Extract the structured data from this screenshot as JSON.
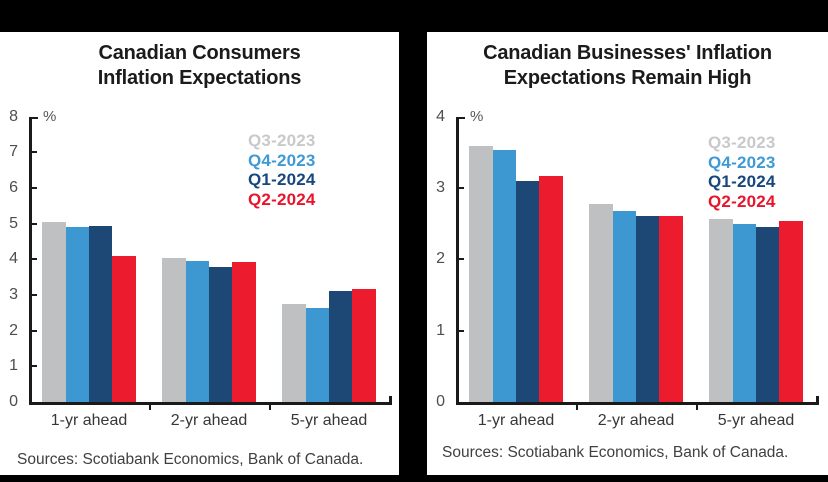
{
  "page": {
    "background_color": "#000000",
    "panel_background_color": "#ffffff"
  },
  "chart_data": [
    {
      "type": "bar",
      "title": "Canadian Consumers Inflation Expectations",
      "title_lines": [
        "Canadian Consumers",
        "Inflation Expectations"
      ],
      "unit_label": "%",
      "ylim": [
        0,
        8
      ],
      "ytick_step": 1,
      "grid": false,
      "legend_position": "upper right",
      "categories": [
        "1-yr ahead",
        "2-yr ahead",
        "5-yr ahead"
      ],
      "series": [
        {
          "name": "Q3-2023",
          "color": "#bfc0c2",
          "legend_color": "#c8c9cb",
          "values": [
            5.05,
            4.04,
            2.74
          ]
        },
        {
          "name": "Q4-2023",
          "color": "#3d97d1",
          "legend_color": "#3d9ad6",
          "values": [
            4.9,
            3.94,
            2.62
          ]
        },
        {
          "name": "Q1-2024",
          "color": "#1d4876",
          "legend_color": "#17477d",
          "values": [
            4.93,
            3.78,
            3.11
          ]
        },
        {
          "name": "Q2-2024",
          "color": "#ec1b2d",
          "legend_color": "#e8142b",
          "values": [
            4.1,
            3.92,
            3.18
          ]
        }
      ],
      "source_note": "Sources: Scotiabank Economics, Bank of Canada."
    },
    {
      "type": "bar",
      "title": "Canadian Businesses' Inflation Expectations Remain High",
      "title_lines": [
        "Canadian Businesses' Inflation",
        "Expectations Remain High"
      ],
      "unit_label": "%",
      "ylim": [
        0,
        4
      ],
      "ytick_step": 1,
      "grid": false,
      "legend_position": "upper right",
      "categories": [
        "1-yr ahead",
        "2-yr ahead",
        "5-yr ahead"
      ],
      "series": [
        {
          "name": "Q3-2023",
          "color": "#bfc0c2",
          "legend_color": "#c8c9cb",
          "values": [
            3.58,
            2.78,
            2.56
          ]
        },
        {
          "name": "Q4-2023",
          "color": "#3d97d1",
          "legend_color": "#3d9ad6",
          "values": [
            3.53,
            2.68,
            2.5
          ]
        },
        {
          "name": "Q1-2024",
          "color": "#1d4876",
          "legend_color": "#17477d",
          "values": [
            3.09,
            2.6,
            2.45
          ]
        },
        {
          "name": "Q2-2024",
          "color": "#ec1b2d",
          "legend_color": "#e8142b",
          "values": [
            3.17,
            2.6,
            2.53
          ]
        }
      ],
      "source_note": "Sources: Scotiabank Economics, Bank of Canada."
    }
  ]
}
